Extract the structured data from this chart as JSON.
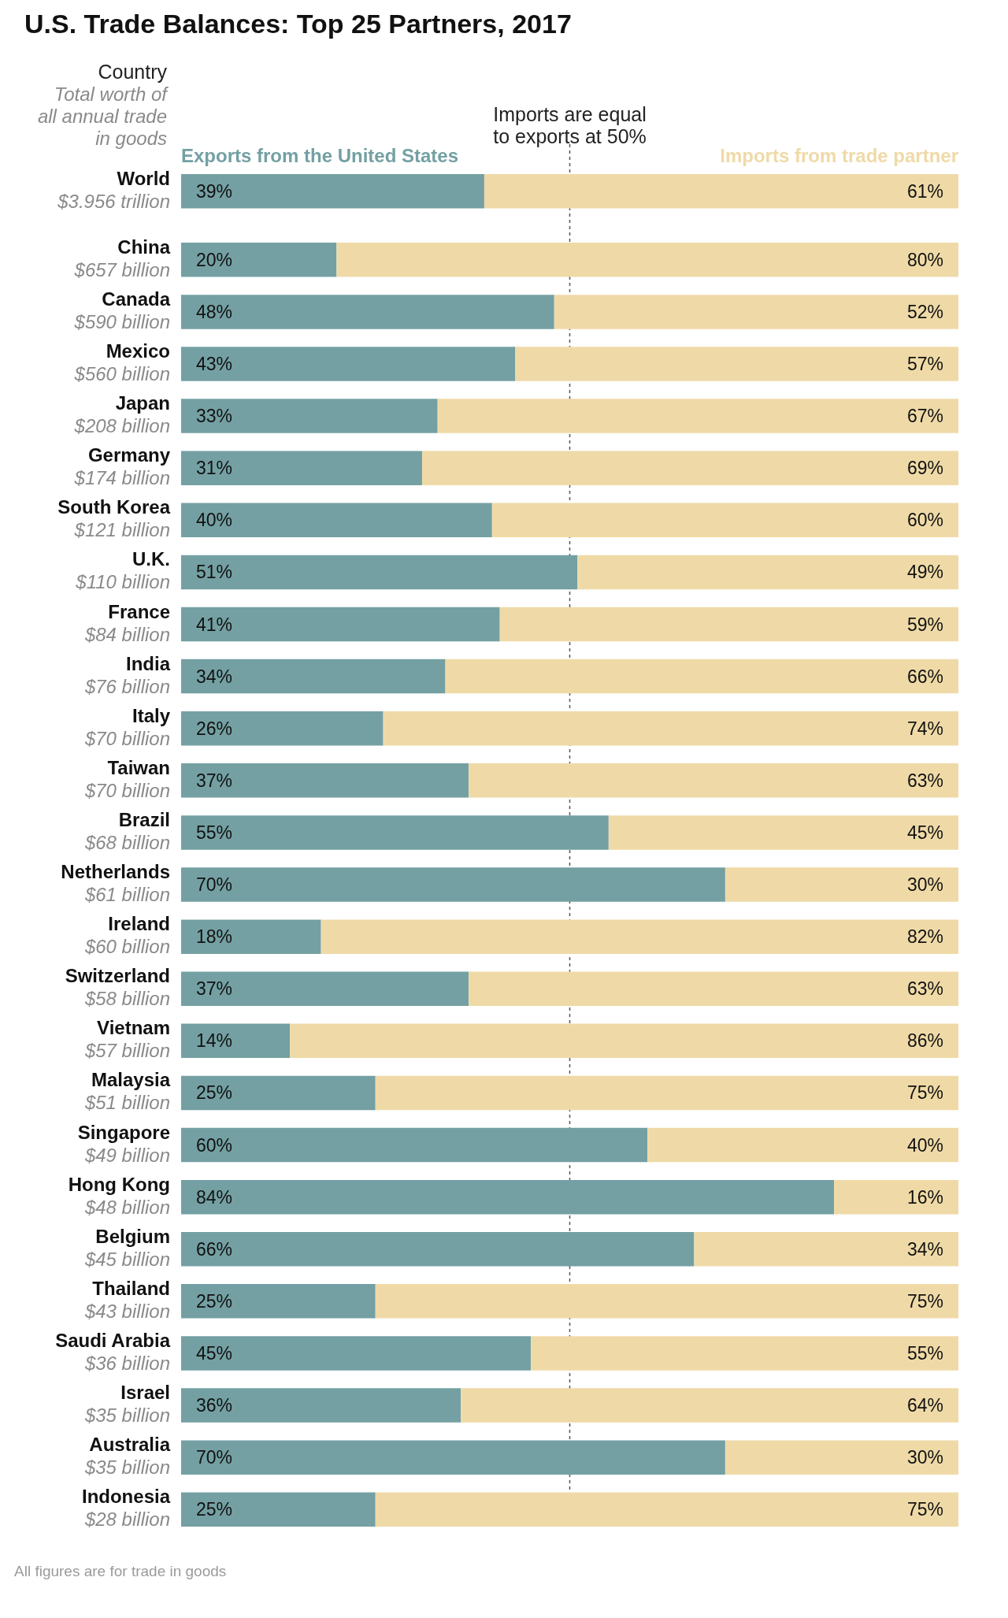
{
  "chart_data": {
    "type": "bar",
    "orientation": "horizontal",
    "stacked": true,
    "title": "U.S. Trade Balances: Top 25 Partners, 2017",
    "ylabel": "Country\nTotal worth of\nall annual trade\nin goods",
    "categories": [
      "World\n$3.956 trillion",
      "China\n$657 billion",
      "Canada\n$590 billion",
      "Mexico\n$560 billion",
      "Japan\n$208 billion",
      "Germany\n$174 billion",
      "South Korea\n$121 billion",
      "U.K.\n$110 billion",
      "France\n$84 billion",
      "India\n$76 billion",
      "Italy\n$70 billion",
      "Taiwan\n$70 billion",
      "Brazil\n$68 billion",
      "Netherlands\n$61 billion",
      "Ireland\n$60 billion",
      "Switzerland\n$58 billion",
      "Vietnam\n$57 billion",
      "Malaysia\n$51 billion",
      "Singapore\n$49 billion",
      "Hong Kong\n$48 billion",
      "Belgium\n$45 billion",
      "Thailand\n$43 billion",
      "Saudi Arabia\n$36 billion",
      "Israel\n$35 billion",
      "Australia\n$35 billion",
      "Indonesia\n$28 billion"
    ],
    "series": [
      {
        "name": "Exports from the United States",
        "color": "#74a0a3",
        "values": [
          39,
          20,
          48,
          43,
          33,
          31,
          40,
          51,
          41,
          34,
          26,
          37,
          55,
          70,
          18,
          37,
          14,
          25,
          60,
          84,
          66,
          25,
          45,
          36,
          70,
          25
        ],
        "value_labels": [
          "39%",
          "20%",
          "48%",
          "43%",
          "33%",
          "31%",
          "40%",
          "51%",
          "41%",
          "34%",
          "26%",
          "37%",
          "55%",
          "70%",
          "18%",
          "37%",
          "14%",
          "25%",
          "60%",
          "84%",
          "66%",
          "25%",
          "45%",
          "36%",
          "70%",
          "25%"
        ]
      },
      {
        "name": "Imports from trade partner",
        "color": "#efdaa7",
        "values": [
          61,
          80,
          52,
          57,
          67,
          69,
          60,
          49,
          59,
          66,
          74,
          63,
          45,
          30,
          82,
          63,
          86,
          75,
          40,
          16,
          34,
          75,
          55,
          64,
          30,
          75
        ],
        "value_labels": [
          "61%",
          "80%",
          "52%",
          "57%",
          "67%",
          "69%",
          "60%",
          "49%",
          "59%",
          "66%",
          "74%",
          "63%",
          "45%",
          "30%",
          "82%",
          "63%",
          "86%",
          "75%",
          "40%",
          "16%",
          "34%",
          "75%",
          "55%",
          "64%",
          "30%",
          "75%"
        ]
      }
    ],
    "xlim": [
      0,
      100
    ],
    "legend": "top",
    "tick_labels": "y",
    "ref_lines": [
      {
        "axis": "x",
        "value": 50,
        "label": "Imports are equal\nto exports at 50%",
        "color": "#555555",
        "line_style": "dashed"
      }
    ],
    "annotations": [
      "All figures are for trade in goods"
    ]
  }
}
